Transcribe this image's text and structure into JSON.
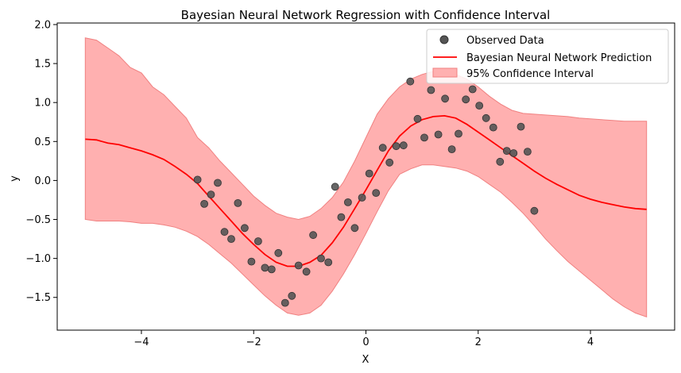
{
  "chart_data": {
    "type": "line",
    "title": "Bayesian Neural Network Regression with Confidence Interval",
    "xlabel": "X",
    "ylabel": "y",
    "xlim": [
      -5.5,
      5.5
    ],
    "ylim": [
      -1.92,
      2.02
    ],
    "xticks": [
      -4,
      -2,
      0,
      2,
      4
    ],
    "xtick_labels": [
      "−4",
      "−2",
      "0",
      "2",
      "4"
    ],
    "yticks": [
      -1.5,
      -1.0,
      -0.5,
      0.0,
      0.5,
      1.0,
      1.5,
      2.0
    ],
    "ytick_labels": [
      "−1.5",
      "−1.0",
      "−0.5",
      "0.0",
      "0.5",
      "1.0",
      "1.5",
      "2.0"
    ],
    "grid": false,
    "legend_position": "top-right",
    "colors": {
      "prediction": "#ff0000",
      "interval_fill": "#ffb0b0",
      "interval_edge": "#f08080",
      "points": "#555555",
      "points_edge": "#333333"
    },
    "legend": [
      {
        "label": "Observed Data",
        "kind": "scatter"
      },
      {
        "label": "Bayesian Neural Network Prediction",
        "kind": "line"
      },
      {
        "label": "95% Confidence Interval",
        "kind": "fill"
      }
    ],
    "scatter": {
      "name": "Observed Data",
      "x": [
        -3.0,
        -2.88,
        -2.76,
        -2.64,
        -2.52,
        -2.4,
        -2.28,
        -2.16,
        -2.04,
        -1.92,
        -1.8,
        -1.68,
        -1.56,
        -1.44,
        -1.32,
        -1.2,
        -1.06,
        -0.94,
        -0.8,
        -0.67,
        -0.55,
        -0.44,
        -0.32,
        -0.2,
        -0.07,
        0.06,
        0.18,
        0.3,
        0.42,
        0.54,
        0.67,
        0.79,
        0.92,
        1.04,
        1.16,
        1.29,
        1.41,
        1.53,
        1.65,
        1.78,
        1.9,
        2.02,
        2.14,
        2.27,
        2.39,
        2.51,
        2.63,
        2.76,
        2.88,
        3.0
      ],
      "y": [
        0.01,
        -0.3,
        -0.18,
        -0.03,
        -0.66,
        -0.75,
        -0.29,
        -0.61,
        -1.04,
        -0.78,
        -1.12,
        -1.14,
        -0.93,
        -1.57,
        -1.48,
        -1.09,
        -1.17,
        -0.7,
        -1.0,
        -1.05,
        -0.08,
        -0.47,
        -0.28,
        -0.61,
        -0.22,
        0.09,
        -0.16,
        0.42,
        0.23,
        0.44,
        0.45,
        1.27,
        0.79,
        0.55,
        1.16,
        0.59,
        1.05,
        0.4,
        0.6,
        1.04,
        1.17,
        0.96,
        0.8,
        0.68,
        0.24,
        0.38,
        0.35,
        0.69,
        0.37,
        -0.39
      ]
    },
    "prediction": {
      "name": "Bayesian Neural Network Prediction",
      "x": [
        -5.0,
        -4.8,
        -4.6,
        -4.4,
        -4.2,
        -4.0,
        -3.8,
        -3.6,
        -3.4,
        -3.2,
        -3.0,
        -2.8,
        -2.6,
        -2.4,
        -2.2,
        -2.0,
        -1.8,
        -1.6,
        -1.4,
        -1.2,
        -1.0,
        -0.8,
        -0.6,
        -0.4,
        -0.2,
        0.0,
        0.2,
        0.4,
        0.6,
        0.8,
        1.0,
        1.2,
        1.4,
        1.6,
        1.8,
        2.0,
        2.2,
        2.4,
        2.6,
        2.8,
        3.0,
        3.2,
        3.4,
        3.6,
        3.8,
        4.0,
        4.2,
        4.4,
        4.6,
        4.8,
        5.0
      ],
      "y": [
        0.53,
        0.52,
        0.48,
        0.46,
        0.42,
        0.38,
        0.33,
        0.27,
        0.18,
        0.08,
        -0.04,
        -0.2,
        -0.36,
        -0.52,
        -0.68,
        -0.82,
        -0.95,
        -1.05,
        -1.1,
        -1.1,
        -1.05,
        -0.96,
        -0.8,
        -0.6,
        -0.36,
        -0.12,
        0.13,
        0.38,
        0.57,
        0.7,
        0.78,
        0.82,
        0.83,
        0.8,
        0.72,
        0.62,
        0.52,
        0.42,
        0.32,
        0.22,
        0.12,
        0.03,
        -0.05,
        -0.12,
        -0.19,
        -0.24,
        -0.28,
        -0.31,
        -0.34,
        -0.36,
        -0.37
      ]
    },
    "interval": {
      "name": "95% Confidence Interval",
      "x": [
        -5.0,
        -4.8,
        -4.6,
        -4.4,
        -4.2,
        -4.0,
        -3.8,
        -3.6,
        -3.4,
        -3.2,
        -3.0,
        -2.8,
        -2.6,
        -2.4,
        -2.2,
        -2.0,
        -1.8,
        -1.6,
        -1.4,
        -1.2,
        -1.0,
        -0.8,
        -0.6,
        -0.4,
        -0.2,
        0.0,
        0.2,
        0.4,
        0.6,
        0.8,
        1.0,
        1.2,
        1.4,
        1.6,
        1.8,
        2.0,
        2.2,
        2.4,
        2.6,
        2.8,
        3.0,
        3.2,
        3.4,
        3.6,
        3.8,
        4.0,
        4.2,
        4.4,
        4.6,
        4.8,
        5.0
      ],
      "upper": [
        1.83,
        1.8,
        1.7,
        1.6,
        1.45,
        1.38,
        1.2,
        1.1,
        0.95,
        0.8,
        0.55,
        0.42,
        0.25,
        0.1,
        -0.05,
        -0.2,
        -0.32,
        -0.42,
        -0.47,
        -0.5,
        -0.46,
        -0.36,
        -0.22,
        -0.02,
        0.25,
        0.55,
        0.85,
        1.05,
        1.2,
        1.3,
        1.36,
        1.4,
        1.4,
        1.36,
        1.3,
        1.2,
        1.08,
        0.98,
        0.9,
        0.86,
        0.85,
        0.84,
        0.83,
        0.82,
        0.8,
        0.79,
        0.78,
        0.77,
        0.76,
        0.76,
        0.76
      ],
      "lower": [
        -0.5,
        -0.52,
        -0.52,
        -0.52,
        -0.53,
        -0.55,
        -0.55,
        -0.57,
        -0.6,
        -0.65,
        -0.72,
        -0.82,
        -0.94,
        -1.06,
        -1.2,
        -1.34,
        -1.48,
        -1.6,
        -1.7,
        -1.73,
        -1.7,
        -1.6,
        -1.42,
        -1.2,
        -0.95,
        -0.68,
        -0.4,
        -0.13,
        0.08,
        0.15,
        0.2,
        0.2,
        0.18,
        0.16,
        0.12,
        0.05,
        -0.05,
        -0.15,
        -0.28,
        -0.42,
        -0.58,
        -0.75,
        -0.9,
        -1.04,
        -1.16,
        -1.28,
        -1.4,
        -1.52,
        -1.62,
        -1.7,
        -1.75
      ]
    }
  }
}
